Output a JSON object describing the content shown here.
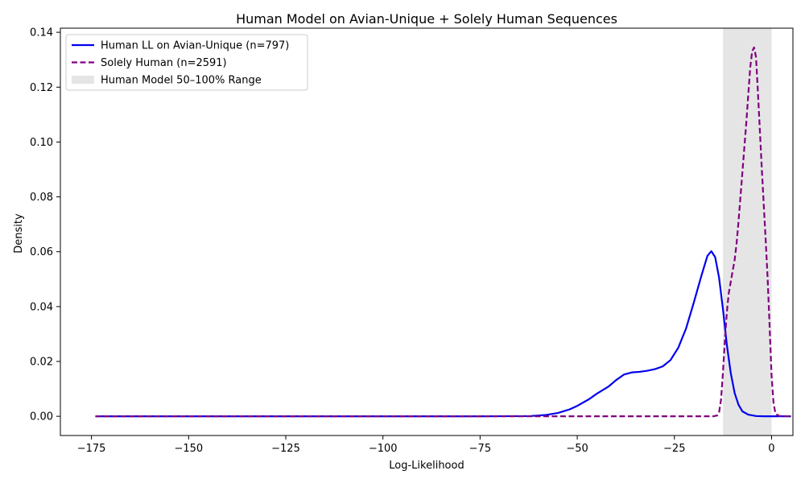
{
  "chart_data": {
    "type": "line",
    "title": "Human Model on Avian-Unique + Solely Human Sequences",
    "xlabel": "Log-Likelihood",
    "ylabel": "Density",
    "xlim": [
      -183,
      5.5
    ],
    "ylim": [
      -0.007,
      0.1415
    ],
    "xticks": [
      -175,
      -150,
      -125,
      -100,
      -75,
      -50,
      -25,
      0
    ],
    "xtick_labels": [
      "−175",
      "−150",
      "−125",
      "−100",
      "−75",
      "−50",
      "−25",
      "0"
    ],
    "yticks": [
      0.0,
      0.02,
      0.04,
      0.06,
      0.08,
      0.1,
      0.12,
      0.14
    ],
    "ytick_labels": [
      "0.00",
      "0.02",
      "0.04",
      "0.06",
      "0.08",
      "0.10",
      "0.12",
      "0.14"
    ],
    "grid": false,
    "legend_position": "top-left",
    "shaded_range": {
      "name": "Human Model 50–100% Range",
      "x": [
        -12.5,
        0
      ],
      "color": "#d3d3d3"
    },
    "series": [
      {
        "name": "Human LL on Avian-Unique (n=797)",
        "color": "#0000ee",
        "dash": "solid",
        "x": [
          -174,
          -100,
          -75,
          -62,
          -58,
          -55,
          -52,
          -50,
          -47,
          -45,
          -42,
          -40,
          -38,
          -36,
          -34,
          -32,
          -30,
          -28,
          -26,
          -24,
          -22,
          -20,
          -18,
          -16.5,
          -15.5,
          -14.5,
          -13.5,
          -12.5,
          -11.5,
          -10.5,
          -9.5,
          -8.5,
          -7.5,
          -6,
          -4,
          -2,
          0,
          5
        ],
        "y": [
          0,
          0,
          0,
          0.0001,
          0.0005,
          0.0012,
          0.0025,
          0.0038,
          0.0062,
          0.0082,
          0.0108,
          0.0132,
          0.0152,
          0.016,
          0.0162,
          0.0166,
          0.0172,
          0.0182,
          0.0205,
          0.025,
          0.032,
          0.0415,
          0.0515,
          0.0585,
          0.0602,
          0.058,
          0.0505,
          0.039,
          0.026,
          0.0158,
          0.0085,
          0.0042,
          0.0018,
          0.0006,
          0.0001,
          0,
          0,
          0
        ]
      },
      {
        "name": "Solely Human (n=2591)",
        "color": "#800080",
        "dash": "dashed",
        "x": [
          -174,
          -20,
          -15,
          -14,
          -13.5,
          -13,
          -12.5,
          -12,
          -11.5,
          -11,
          -10.5,
          -10,
          -9.5,
          -9,
          -8.5,
          -8,
          -7.5,
          -7,
          -6.5,
          -6,
          -5.5,
          -5,
          -4.5,
          -4,
          -3.5,
          -3,
          -2.5,
          -2,
          -1.5,
          -1,
          -0.5,
          0,
          0.5,
          1,
          2,
          5
        ],
        "y": [
          0,
          0,
          0,
          0.0003,
          0.0015,
          0.006,
          0.016,
          0.028,
          0.038,
          0.045,
          0.049,
          0.053,
          0.057,
          0.063,
          0.071,
          0.08,
          0.089,
          0.098,
          0.107,
          0.117,
          0.127,
          0.133,
          0.1345,
          0.131,
          0.118,
          0.104,
          0.09,
          0.077,
          0.064,
          0.05,
          0.033,
          0.015,
          0.005,
          0.001,
          0.0001,
          0
        ]
      }
    ]
  }
}
